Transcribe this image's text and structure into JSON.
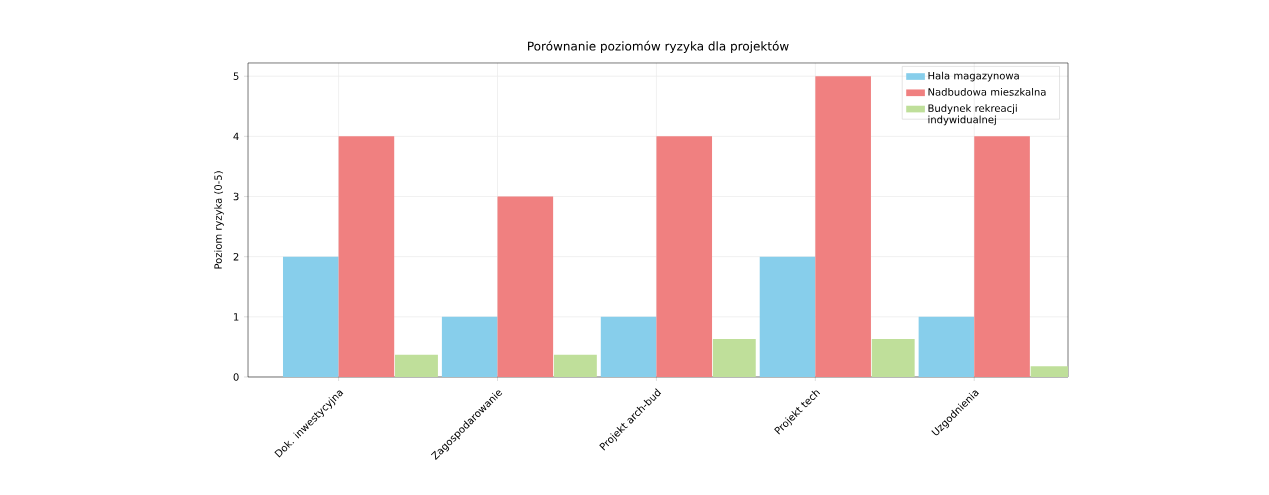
{
  "chart_data": {
    "type": "bar",
    "title": "Porównanie poziomów ryzyka dla projektów",
    "ylabel": "Poziom ryzyka (0-5)",
    "categories": [
      "Dok. inwestycyjna",
      "Zagospodarowanie",
      "Projekt arch-bud",
      "Projekt tech",
      "Uzgodnienia"
    ],
    "series": [
      {
        "name": "Hala magazynowa",
        "color": "#87ceeb",
        "values": [
          2,
          1,
          1,
          2,
          1
        ]
      },
      {
        "name": "Nadbudowa mieszkalna",
        "color": "#f08080",
        "values": [
          4,
          3,
          4,
          5,
          4
        ]
      },
      {
        "name": "Budynek rekreacji indywidualnej",
        "color": "#bfdf9a",
        "values": [
          0.37,
          0.37,
          0.63,
          0.63,
          0.18
        ]
      }
    ],
    "ylim": [
      0,
      5.22
    ],
    "yticks": [
      0,
      1,
      2,
      3,
      4,
      5
    ],
    "grid": true,
    "legend": "top right"
  }
}
